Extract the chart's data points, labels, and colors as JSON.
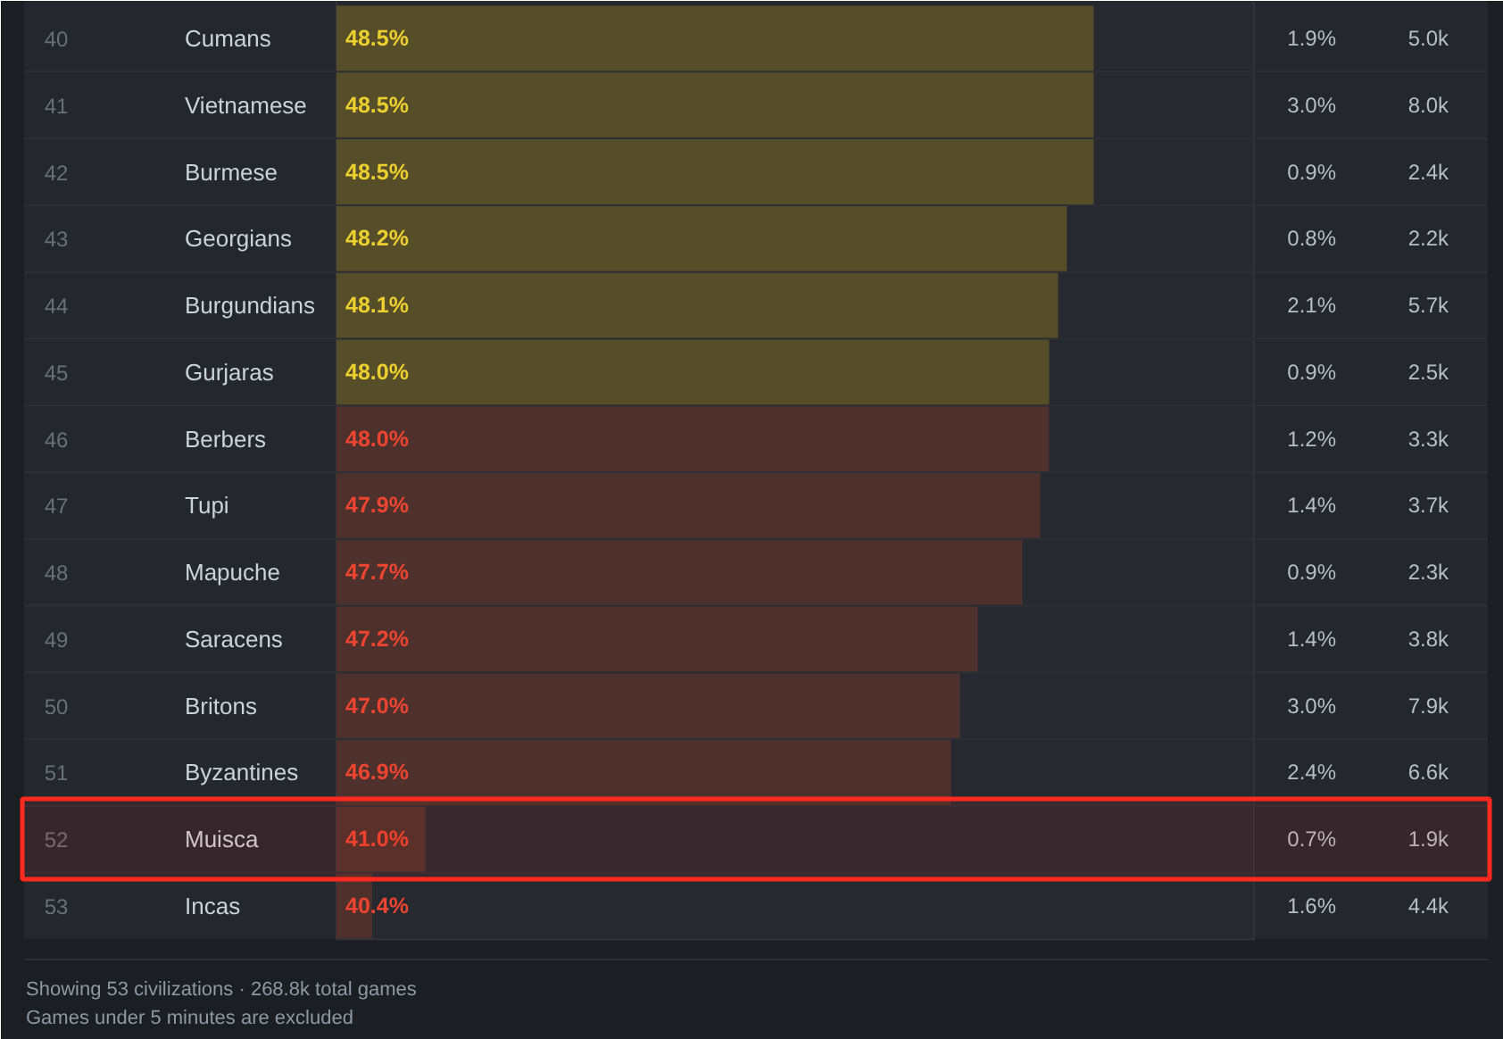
{
  "chart_data": {
    "type": "bar",
    "orientation": "horizontal",
    "tick_labels": "y",
    "categories": [
      "Cumans",
      "Vietnamese",
      "Burmese",
      "Georgians",
      "Burgundians",
      "Gurjaras",
      "Berbers",
      "Tupi",
      "Mapuche",
      "Saracens",
      "Britons",
      "Byzantines",
      "Muisca",
      "Incas"
    ],
    "values": [
      48.5,
      48.5,
      48.5,
      48.2,
      48.1,
      48.0,
      48.0,
      47.9,
      47.7,
      47.2,
      47.0,
      46.9,
      41.0,
      40.4
    ],
    "colors": [
      "#554e28",
      "#554e28",
      "#554e28",
      "#554e28",
      "#554e28",
      "#554e28",
      "#4e302c",
      "#4e302c",
      "#4e302c",
      "#4e302c",
      "#4e302c",
      "#4e302c",
      "#4e302c",
      "#4e302c"
    ],
    "value_labels": [
      "48.5%",
      "48.5%",
      "48.5%",
      "48.2%",
      "48.1%",
      "48.0%",
      "48.0%",
      "47.9%",
      "47.7%",
      "47.2%",
      "47.0%",
      "46.9%",
      "41.0%",
      "40.4%"
    ],
    "xlim": [
      40,
      50.3
    ],
    "bands": [
      {
        "axis": "y",
        "from": "Muisca",
        "to": "Muisca",
        "color": "#ff2a1f"
      }
    ],
    "annotations": [
      "40",
      "1.9%",
      "5.0k",
      "41",
      "3.0%",
      "8.0k",
      "42",
      "0.9%",
      "2.4k",
      "43",
      "0.8%",
      "2.2k",
      "44",
      "2.1%",
      "5.7k",
      "45",
      "0.9%",
      "2.5k",
      "46",
      "1.2%",
      "3.3k",
      "47",
      "1.4%",
      "3.7k",
      "48",
      "0.9%",
      "2.3k",
      "49",
      "1.4%",
      "3.8k",
      "50",
      "3.0%",
      "7.9k",
      "51",
      "2.4%",
      "6.6k",
      "52",
      "0.7%",
      "1.9k",
      "53",
      "1.6%",
      "4.4k",
      "Showing 53 civilizations · 268.8k total games",
      "Games under 5 minutes are excluded"
    ]
  }
}
